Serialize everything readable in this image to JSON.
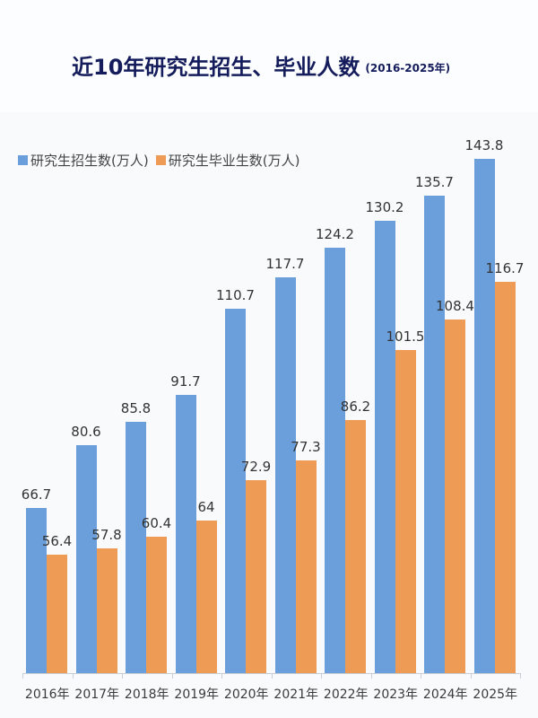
{
  "header": {
    "title": "近10年研究生招生、毕业人数",
    "subtitle": "(2016-2025年)"
  },
  "legend": [
    {
      "label": "研究生招生数(万人)",
      "color": "#6a9fdb"
    },
    {
      "label": "研究生毕业生数(万人)",
      "color": "#ee9c55"
    }
  ],
  "chart_data": {
    "type": "bar",
    "title": "近10年研究生招生、毕业人数 (2016-2025年)",
    "xlabel": "",
    "ylabel": "",
    "categories": [
      "2016年",
      "2017年",
      "2018年",
      "2019年",
      "2020年",
      "2021年",
      "2022年",
      "2023年",
      "2024年",
      "2025年"
    ],
    "series": [
      {
        "name": "研究生招生数(万人)",
        "color": "#6a9fdb",
        "values": [
          66.7,
          80.6,
          85.8,
          91.7,
          110.7,
          117.7,
          124.2,
          130.2,
          135.7,
          143.8
        ]
      },
      {
        "name": "研究生毕业生数(万人)",
        "color": "#ee9c55",
        "values": [
          56.4,
          57.8,
          60.4,
          64,
          72.9,
          77.3,
          86.2,
          101.5,
          108.4,
          116.7
        ]
      }
    ],
    "value_labels": [
      [
        "66.7",
        "80.6",
        "85.8",
        "91.7",
        "110.7",
        "117.7",
        "124.2",
        "130.2",
        "135.7",
        "143.8"
      ],
      [
        "56.4",
        "57.8",
        "60.4",
        "64",
        "72.9",
        "77.3",
        "86.2",
        "101.5",
        "108.4",
        "116.7"
      ]
    ],
    "grid": false,
    "legend_position": "top-left",
    "ylim": [
      30,
      150
    ]
  }
}
